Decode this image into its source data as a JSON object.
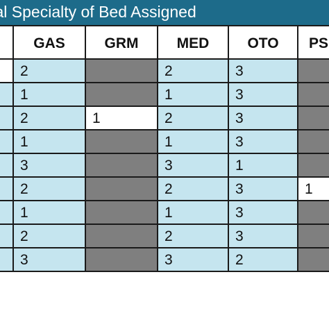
{
  "title": "cal Specialty of Bed Assigned",
  "columns": [
    "",
    "GAS",
    "GRM",
    "MED",
    "OTO",
    "PS"
  ],
  "rows": [
    [
      "",
      "2",
      "",
      "2",
      "3",
      ""
    ],
    [
      "",
      "1",
      "",
      "1",
      "3",
      ""
    ],
    [
      "",
      "2",
      "1",
      "2",
      "3",
      ""
    ],
    [
      "",
      "1",
      "",
      "1",
      "3",
      ""
    ],
    [
      "",
      "3",
      "",
      "3",
      "1",
      ""
    ],
    [
      "",
      "2",
      "",
      "2",
      "3",
      "1"
    ],
    [
      "",
      "1",
      "",
      "1",
      "3",
      ""
    ],
    [
      "",
      "2",
      "",
      "2",
      "3",
      ""
    ],
    [
      "",
      "3",
      "",
      "3",
      "2",
      ""
    ]
  ],
  "colors": {
    "title_bar": "#1d6b8a",
    "title_text": "#ffffff",
    "light_blue_cell": "#c5e5ef",
    "white_cell": "#ffffff",
    "gray_cell": "#7f7f7f",
    "border": "#1a1a1a"
  }
}
